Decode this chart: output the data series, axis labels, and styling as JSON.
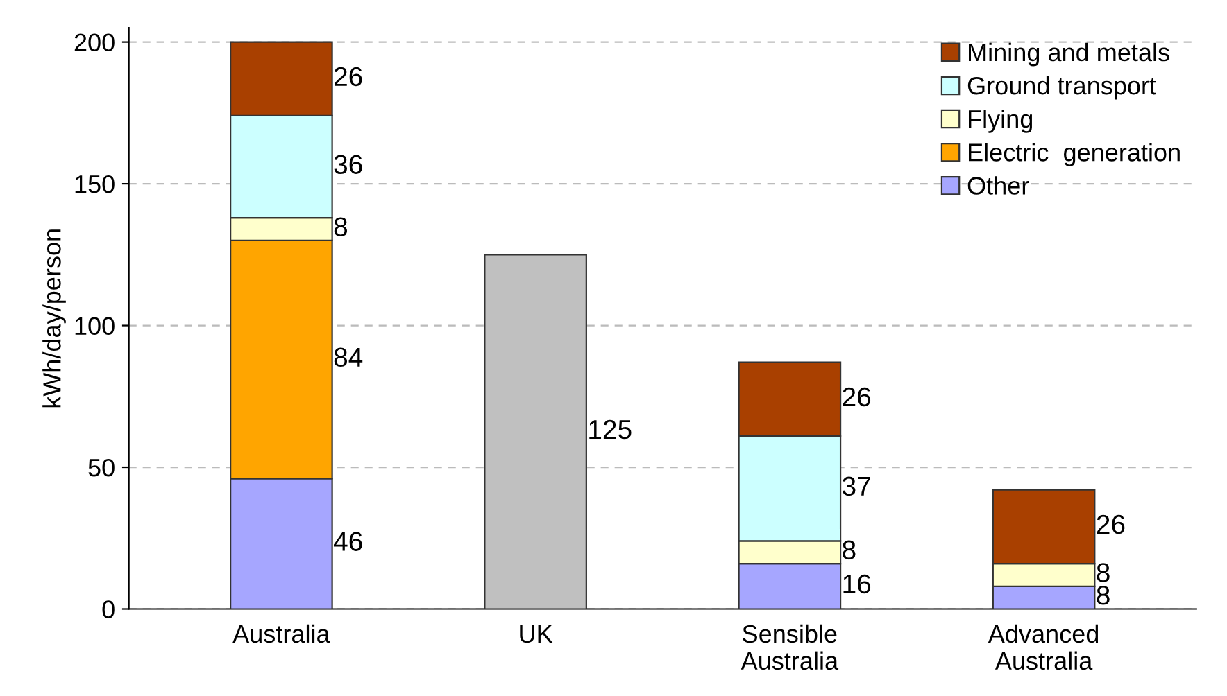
{
  "chart_data": {
    "type": "bar",
    "stacked": true,
    "ylabel": "kWh/day/person",
    "categories": [
      "Australia",
      "UK",
      "Sensible\nAustralia",
      "Advanced\nAustralia"
    ],
    "series": [
      {
        "name": "Other",
        "color": "#a6a6ff",
        "values": [
          46,
          null,
          16,
          8
        ]
      },
      {
        "name": "Electric  generation",
        "color": "#ffa500",
        "values": [
          84,
          null,
          null,
          null
        ]
      },
      {
        "name": "Flying",
        "color": "#ffffcc",
        "values": [
          8,
          null,
          8,
          8
        ]
      },
      {
        "name": "Ground transport",
        "color": "#ccffff",
        "values": [
          36,
          null,
          37,
          null
        ]
      },
      {
        "name": "Mining and metals",
        "color": "#a94000",
        "values": [
          26,
          null,
          26,
          26
        ]
      },
      {
        "color": "#c0c0c0",
        "values": [
          null,
          125,
          null,
          null
        ]
      }
    ],
    "ylim": [
      0,
      205
    ],
    "yticks": [
      0,
      50,
      100,
      150,
      200
    ],
    "grid": "y",
    "legend": "top right",
    "data_labels": true
  }
}
